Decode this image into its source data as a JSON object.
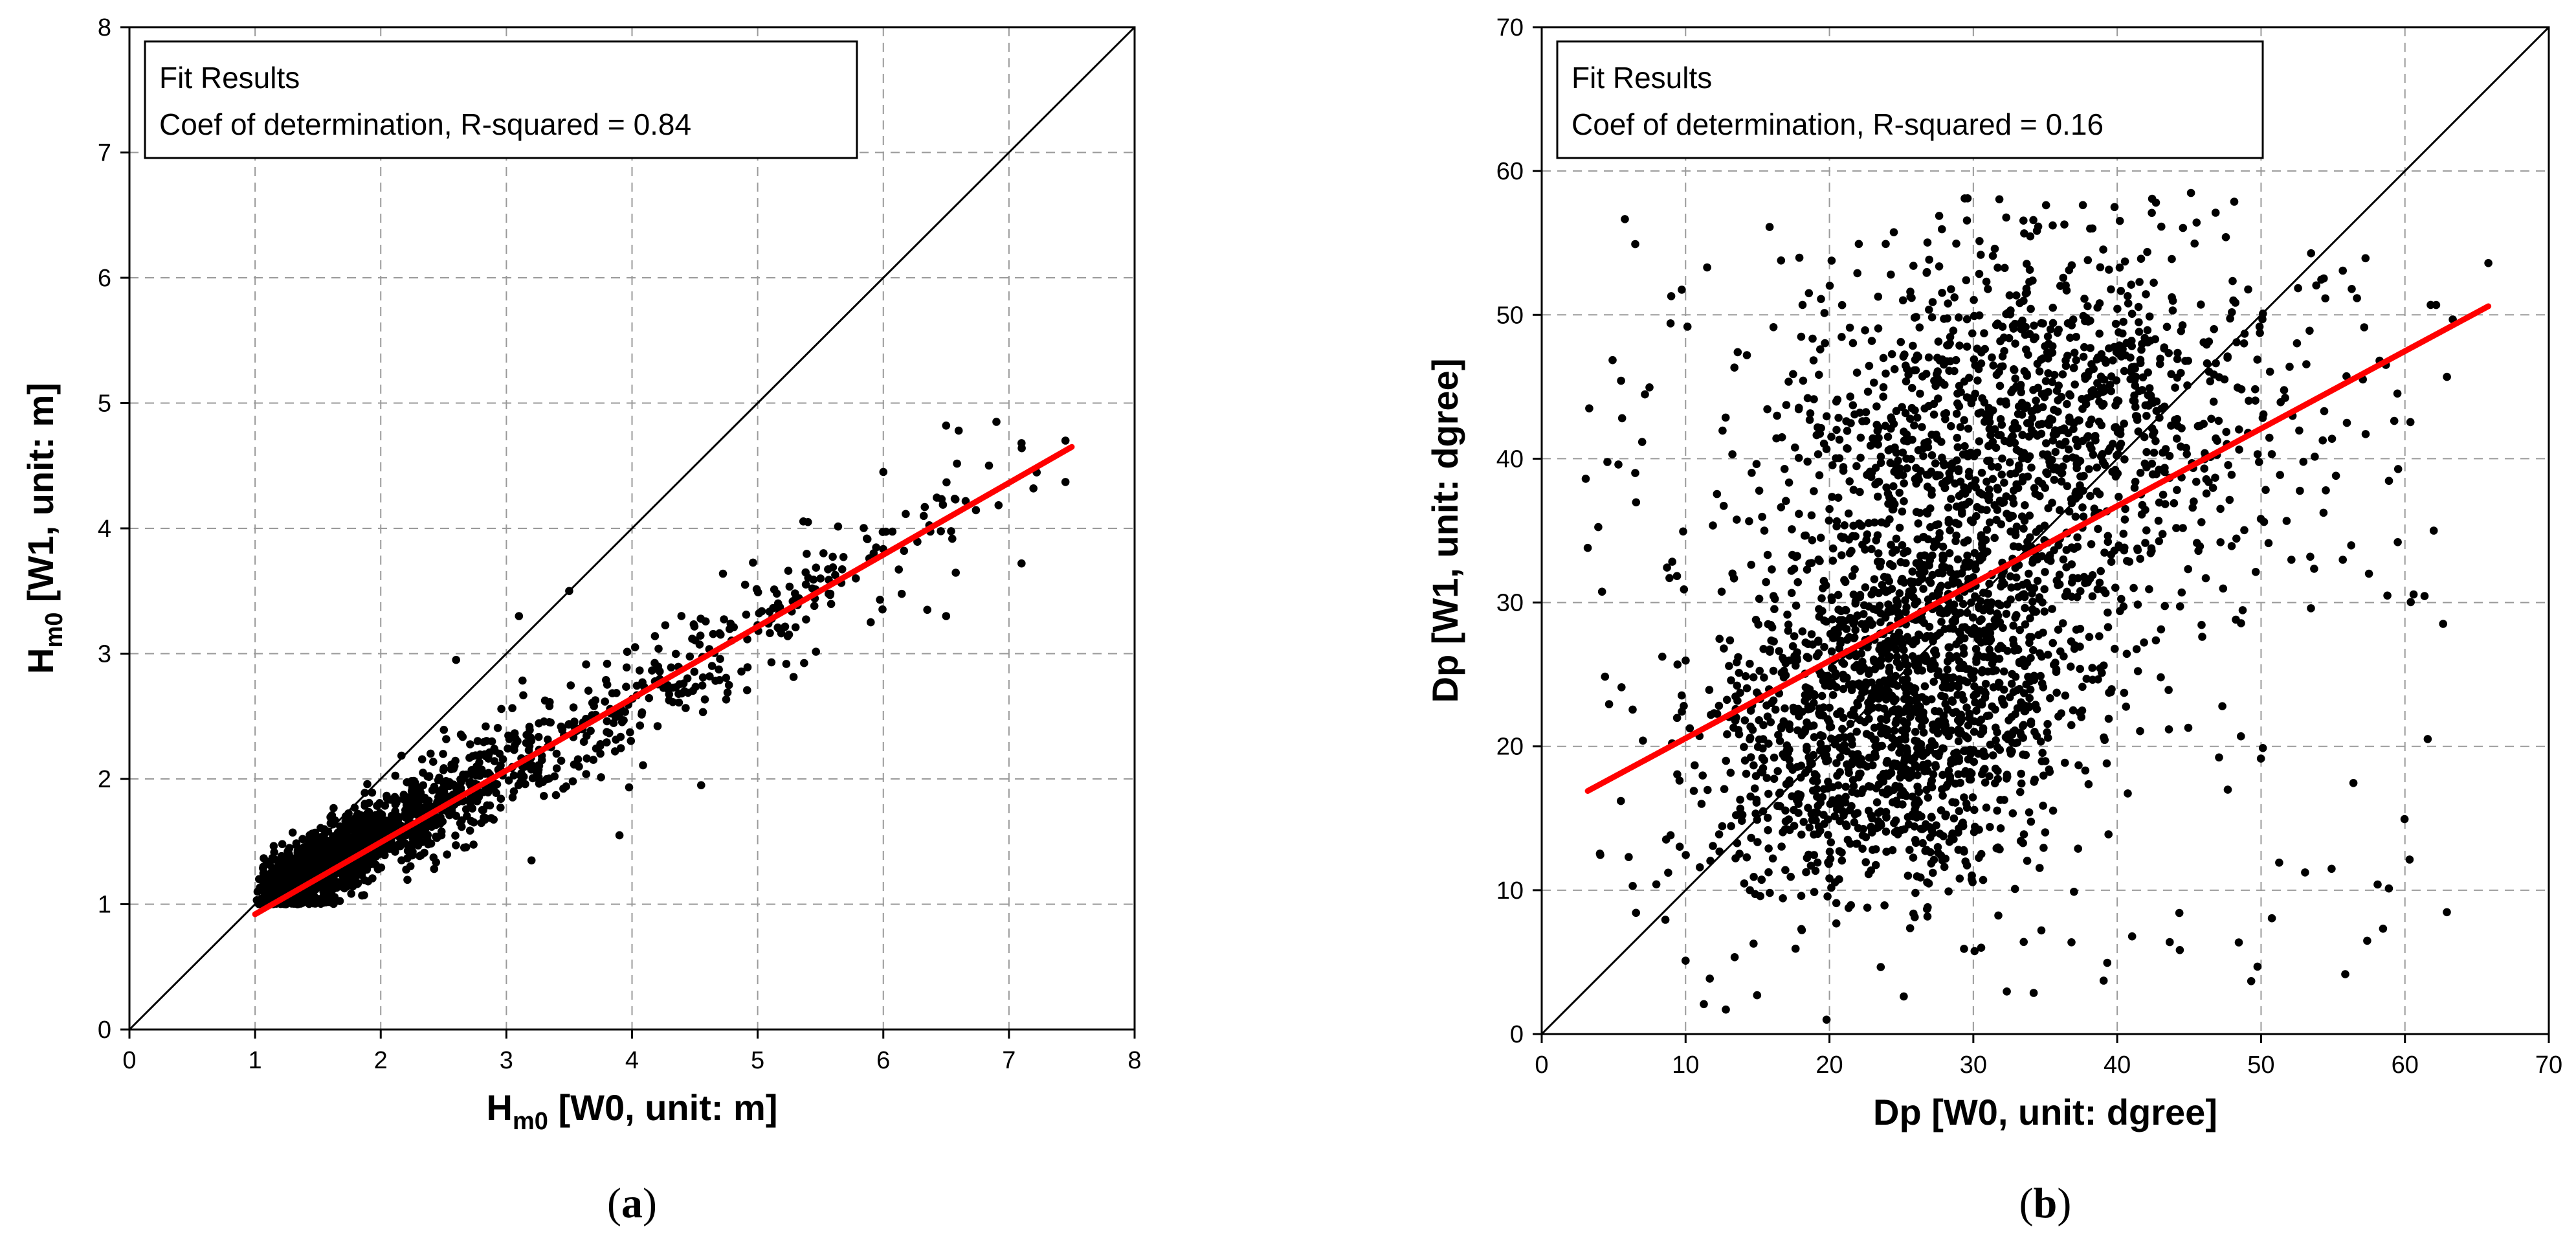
{
  "colors": {
    "fit_line": "#ff0000",
    "points": "#000000",
    "grid": "#9a9a9a",
    "frame": "#000000"
  },
  "chart_data": [
    {
      "type": "scatter",
      "panel": "a",
      "caption_open": "(",
      "caption_letter": "a",
      "caption_close": ")",
      "x_range": [
        0,
        8
      ],
      "y_range": [
        0,
        8
      ],
      "x_ticks": [
        0,
        1,
        2,
        3,
        4,
        5,
        6,
        7,
        8
      ],
      "y_ticks": [
        0,
        1,
        2,
        3,
        4,
        5,
        6,
        7,
        8
      ],
      "xlabel": {
        "main": "H",
        "sub": "m0",
        "rest": " [W0, unit: m]"
      },
      "ylabel": {
        "main": "H",
        "sub": "m0",
        "rest": " [W1, unit: m]"
      },
      "grid": true,
      "fit_box": {
        "title": "Fit Results",
        "line2": "Coef of determination, R-squared = 0.84"
      },
      "legend_position": "top-left",
      "reference_line": {
        "from": [
          0,
          0
        ],
        "to": [
          8,
          8
        ]
      },
      "fit_line": {
        "from": [
          1.0,
          0.92
        ],
        "to": [
          7.5,
          4.65
        ]
      },
      "points_summary": {
        "count": 2000,
        "x_range": [
          1.0,
          7.5
        ],
        "y_range": [
          1.0,
          4.85
        ],
        "relation": "y ≈ 0.574x + 0.346 with dense cluster near x 1–3"
      },
      "points": [
        {
          "x": 6.5,
          "y": 4.82
        },
        {
          "x": 6.6,
          "y": 4.78
        },
        {
          "x": 6.9,
          "y": 4.85
        },
        {
          "x": 7.1,
          "y": 4.68
        },
        {
          "x": 7.45,
          "y": 4.7
        },
        {
          "x": 7.45,
          "y": 4.37
        },
        {
          "x": 7.1,
          "y": 3.72
        },
        {
          "x": 6.5,
          "y": 3.3
        },
        {
          "x": 6.35,
          "y": 3.35
        },
        {
          "x": 6.0,
          "y": 4.45
        },
        {
          "x": 5.5,
          "y": 3.6
        },
        {
          "x": 5.9,
          "y": 3.25
        },
        {
          "x": 4.9,
          "y": 3.55
        },
        {
          "x": 5.4,
          "y": 4.05
        },
        {
          "x": 4.55,
          "y": 1.95
        },
        {
          "x": 3.9,
          "y": 1.55
        },
        {
          "x": 3.5,
          "y": 3.5
        },
        {
          "x": 3.1,
          "y": 3.3
        },
        {
          "x": 2.6,
          "y": 2.95
        },
        {
          "x": 3.2,
          "y": 1.35
        }
      ]
    },
    {
      "type": "scatter",
      "panel": "b",
      "caption_open": "(",
      "caption_letter": "b",
      "caption_close": ")",
      "x_range": [
        0,
        70
      ],
      "y_range": [
        0,
        70
      ],
      "x_ticks": [
        0,
        10,
        20,
        30,
        40,
        50,
        60,
        70
      ],
      "y_ticks": [
        0,
        10,
        20,
        30,
        40,
        50,
        60,
        70
      ],
      "xlabel": {
        "main": "Dp",
        "sub": "",
        "rest": " [W0, unit: dgree]"
      },
      "ylabel": {
        "main": "Dp",
        "sub": "",
        "rest": " [W1, unit: dgree]"
      },
      "grid": true,
      "fit_box": {
        "title": "Fit Results",
        "line2": "Coef of determination, R-squared = 0.16"
      },
      "legend_position": "top-left",
      "reference_line": {
        "from": [
          0,
          0
        ],
        "to": [
          70,
          70
        ]
      },
      "fit_line": {
        "from": [
          3.2,
          16.9
        ],
        "to": [
          65.8,
          50.6
        ]
      },
      "points_summary": {
        "count": 3000,
        "x_range": [
          3,
          66
        ],
        "y_range": [
          1,
          58
        ],
        "relation": "two clusters: centre ~(25, 22) and ~(33, 43); trend y ≈ 0.538x + 15.2"
      },
      "points": [
        {
          "x": 3.3,
          "y": 43.5
        },
        {
          "x": 3.2,
          "y": 33.8
        },
        {
          "x": 9,
          "y": 51.3
        },
        {
          "x": 11.5,
          "y": 53.3
        },
        {
          "x": 12.8,
          "y": 1.7
        },
        {
          "x": 19.8,
          "y": 1.0
        },
        {
          "x": 29.6,
          "y": 58.1
        },
        {
          "x": 62,
          "y": 35
        },
        {
          "x": 65.8,
          "y": 53.6
        },
        {
          "x": 59.5,
          "y": 34.2
        },
        {
          "x": 57.5,
          "y": 32
        },
        {
          "x": 56.3,
          "y": 51.8
        },
        {
          "x": 54.5,
          "y": 37.8
        },
        {
          "x": 48.6,
          "y": 20.7
        },
        {
          "x": 33.5,
          "y": 6.4
        },
        {
          "x": 10,
          "y": 5.1
        },
        {
          "x": 5.5,
          "y": 16.2
        },
        {
          "x": 6.5,
          "y": 39
        }
      ]
    }
  ]
}
